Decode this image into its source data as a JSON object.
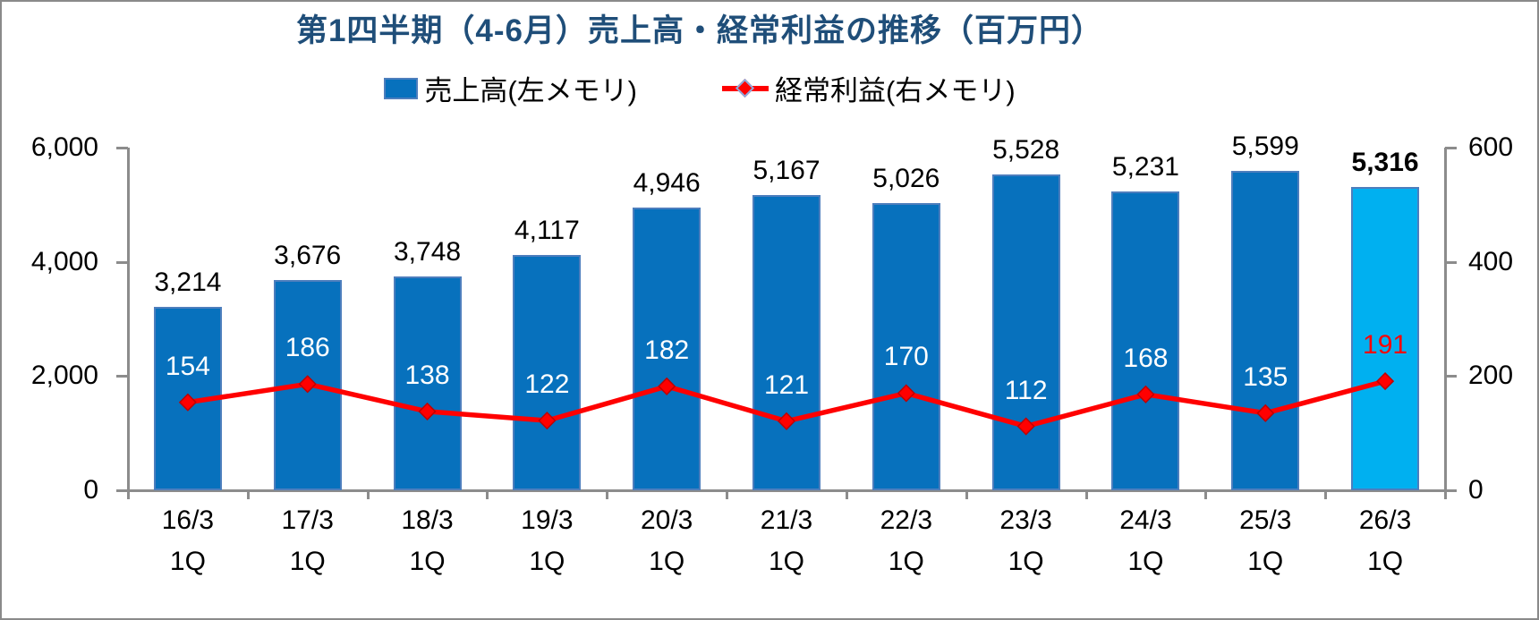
{
  "title": "第1四半期（4-6月）売上高・経常利益の推移（百万円）",
  "legend": [
    {
      "label": "売上高(左メモリ)",
      "swatch": "bar",
      "color": "#0771BD"
    },
    {
      "label": "経常利益(右メモリ)",
      "swatch": "line-diamond",
      "color": "#FF0000"
    }
  ],
  "colors": {
    "title": "#1F4E79",
    "axis": "#8C8C8C",
    "frame_border": "#8A8A8A",
    "bar_fill": "#0771BD",
    "bar_border": "#4D7EBD",
    "last_bar_fill": "#00B0F0",
    "line": "#FF0000",
    "marker_edge": "#C00000",
    "bar_value_text": "#000000",
    "line_value_text": "#FFFFFF",
    "last_line_value_text": "#FF0000"
  },
  "chart_data": {
    "type": "bar+line combo",
    "title": "第1四半期（4-6月）売上高・経常利益の推移（百万円）",
    "categories": [
      "16/3",
      "17/3",
      "18/3",
      "19/3",
      "20/3",
      "21/3",
      "22/3",
      "23/3",
      "24/3",
      "25/3",
      "26/3"
    ],
    "category_sub_label": "1Q",
    "legend_position": "top",
    "gridlines": false,
    "left_axis": {
      "title": "",
      "min": 0,
      "max": 6000,
      "tick_values": [
        0,
        2000,
        4000,
        6000
      ],
      "tick_labels": [
        "0",
        "2,000",
        "4,000",
        "6,000"
      ]
    },
    "right_axis": {
      "title": "",
      "min": 0,
      "max": 600,
      "tick_values": [
        0,
        200,
        400,
        600
      ],
      "tick_labels": [
        "0",
        "200",
        "400",
        "600"
      ]
    },
    "series": [
      {
        "name": "売上高(左メモリ)",
        "type": "bar",
        "axis": "left",
        "values": [
          3214,
          3676,
          3748,
          4117,
          4946,
          5167,
          5026,
          5528,
          5231,
          5599,
          5316
        ],
        "labels": [
          "3,214",
          "3,676",
          "3,748",
          "4,117",
          "4,946",
          "5,167",
          "5,026",
          "5,528",
          "5,231",
          "5,599",
          "5,316"
        ],
        "color": "#0771BD",
        "border_color": "#4D7EBD",
        "last_bar_color": "#00B0F0",
        "last_label_bold": true
      },
      {
        "name": "経常利益(右メモリ)",
        "type": "line",
        "axis": "right",
        "marker": "diamond",
        "values": [
          154,
          186,
          138,
          122,
          182,
          121,
          170,
          112,
          168,
          135,
          191
        ],
        "labels": [
          "154",
          "186",
          "138",
          "122",
          "182",
          "121",
          "170",
          "112",
          "168",
          "135",
          "191"
        ],
        "color": "#FF0000",
        "marker_edge_color": "#C00000",
        "label_color": "#FFFFFF",
        "last_label_color": "#FF0000"
      }
    ]
  }
}
